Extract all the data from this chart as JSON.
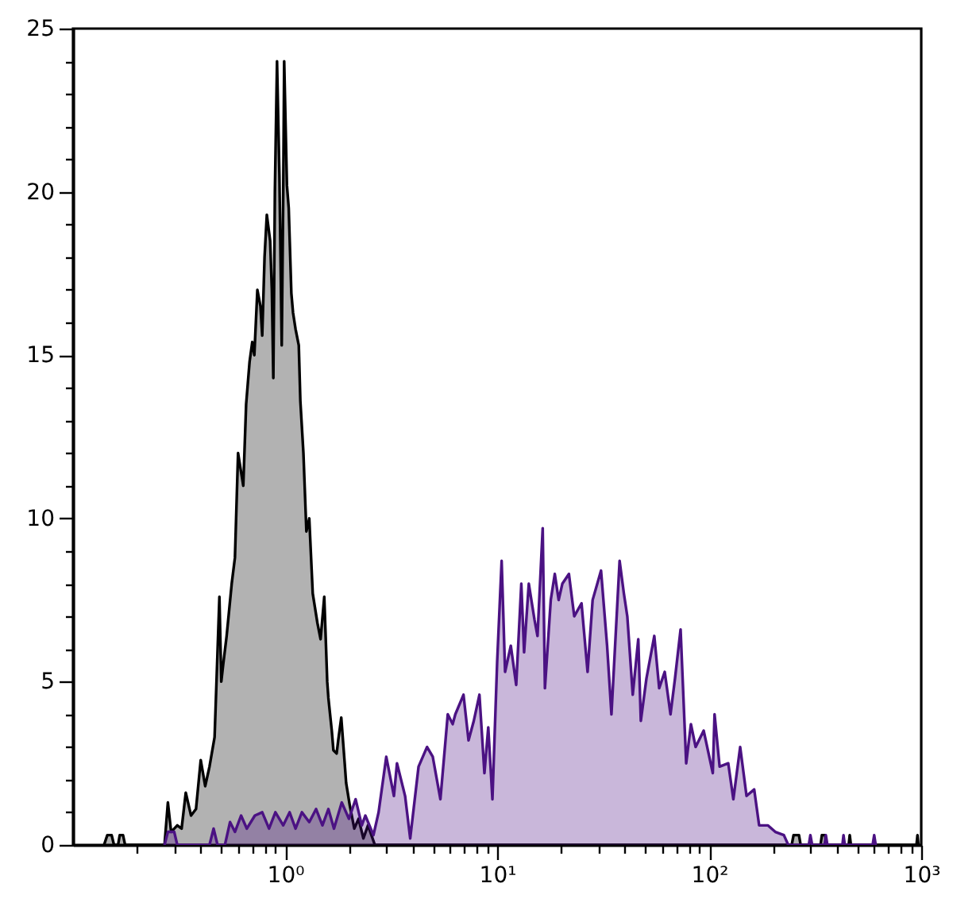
{
  "chart_data": {
    "type": "area",
    "log": "x",
    "xlim": [
      0.1,
      1000
    ],
    "ylim": [
      0,
      25
    ],
    "xticks": [
      {
        "value": 0.2,
        "label": null
      },
      {
        "value": 0.3,
        "label": null
      },
      {
        "value": 0.4,
        "label": null
      },
      {
        "value": 0.5,
        "label": null
      },
      {
        "value": 0.6,
        "label": null
      },
      {
        "value": 0.7,
        "label": null
      },
      {
        "value": 0.8,
        "label": null
      },
      {
        "value": 0.9,
        "label": null
      },
      {
        "value": 1,
        "label": "10⁰"
      },
      {
        "value": 2,
        "label": null
      },
      {
        "value": 3,
        "label": null
      },
      {
        "value": 4,
        "label": null
      },
      {
        "value": 5,
        "label": null
      },
      {
        "value": 6,
        "label": null
      },
      {
        "value": 7,
        "label": null
      },
      {
        "value": 8,
        "label": null
      },
      {
        "value": 9,
        "label": null
      },
      {
        "value": 10,
        "label": "10¹"
      },
      {
        "value": 20,
        "label": null
      },
      {
        "value": 30,
        "label": null
      },
      {
        "value": 40,
        "label": null
      },
      {
        "value": 50,
        "label": null
      },
      {
        "value": 60,
        "label": null
      },
      {
        "value": 70,
        "label": null
      },
      {
        "value": 80,
        "label": null
      },
      {
        "value": 90,
        "label": null
      },
      {
        "value": 100,
        "label": "10²"
      },
      {
        "value": 200,
        "label": null
      },
      {
        "value": 300,
        "label": null
      },
      {
        "value": 400,
        "label": null
      },
      {
        "value": 500,
        "label": null
      },
      {
        "value": 600,
        "label": null
      },
      {
        "value": 700,
        "label": null
      },
      {
        "value": 800,
        "label": null
      },
      {
        "value": 900,
        "label": null
      },
      {
        "value": 1000,
        "label": "10³"
      }
    ],
    "yticks": [
      0,
      {
        "value": 1,
        "label": null
      },
      {
        "value": 2,
        "label": null
      },
      {
        "value": 3,
        "label": null
      },
      {
        "value": 4,
        "label": null
      },
      5,
      {
        "value": 6,
        "label": null
      },
      {
        "value": 7,
        "label": null
      },
      {
        "value": 8,
        "label": null
      },
      {
        "value": 9,
        "label": null
      },
      10,
      {
        "value": 11,
        "label": null
      },
      {
        "value": 12,
        "label": null
      },
      {
        "value": 13,
        "label": null
      },
      {
        "value": 14,
        "label": null
      },
      15,
      {
        "value": 16,
        "label": null
      },
      {
        "value": 17,
        "label": null
      },
      {
        "value": 18,
        "label": null
      },
      {
        "value": 19,
        "label": null
      },
      20,
      {
        "value": 21,
        "label": null
      },
      {
        "value": 22,
        "label": null
      },
      {
        "value": 23,
        "label": null
      },
      {
        "value": 24,
        "label": null
      },
      25
    ],
    "series": [
      {
        "color": "#000000",
        "x": [
          0.14,
          0.145,
          0.152,
          0.156,
          0.163,
          0.166,
          0.172,
          0.176,
          0.27,
          0.28,
          0.29,
          0.31,
          0.325,
          0.34,
          0.36,
          0.38,
          0.4,
          0.42,
          0.44,
          0.465,
          0.49,
          0.5,
          0.51,
          0.53,
          0.56,
          0.58,
          0.6,
          0.635,
          0.655,
          0.68,
          0.7,
          0.716,
          0.74,
          0.765,
          0.78,
          0.8,
          0.82,
          0.85,
          0.866,
          0.88,
          0.895,
          0.916,
          0.94,
          0.964,
          0.98,
          0.99,
          1.02,
          1.04,
          1.07,
          1.09,
          1.12,
          1.16,
          1.18,
          1.22,
          1.26,
          1.3,
          1.35,
          1.42,
          1.47,
          1.53,
          1.58,
          1.6,
          1.66,
          1.69,
          1.75,
          1.78,
          1.84,
          1.91,
          1.94,
          2.02,
          2.12,
          2.22,
          2.34,
          2.46,
          2.65,
          245,
          250,
          265,
          270,
          335,
          340,
          352,
          357,
          455,
          460,
          466,
          950,
          960,
          970
        ],
        "values": [
          0,
          0.3,
          0.3,
          0,
          0,
          0.3,
          0.3,
          0,
          0,
          1.3,
          0.4,
          0.6,
          0.5,
          1.6,
          0.9,
          1.1,
          2.6,
          1.8,
          2.4,
          3.3,
          7.6,
          5.0,
          5.5,
          6.4,
          8.0,
          8.8,
          12.0,
          11.0,
          13.5,
          14.8,
          15.4,
          15.0,
          17.0,
          16.5,
          15.6,
          18.0,
          19.3,
          18.5,
          17.0,
          14.3,
          20.0,
          24.0,
          20.5,
          15.3,
          20.0,
          24.0,
          20.2,
          19.5,
          16.9,
          16.3,
          15.8,
          15.3,
          13.6,
          12.0,
          9.6,
          10.0,
          7.7,
          6.8,
          6.3,
          7.6,
          5.0,
          4.5,
          3.5,
          2.9,
          2.8,
          3.2,
          3.9,
          2.5,
          1.9,
          1.2,
          0.5,
          0.8,
          0.2,
          0.6,
          0,
          0,
          0.3,
          0.3,
          0,
          0,
          0.3,
          0.3,
          0,
          0,
          0.3,
          0,
          0,
          0.3,
          0
        ]
      },
      {
        "color": "#4b1283",
        "x": [
          0.27,
          0.28,
          0.3,
          0.31,
          0.44,
          0.46,
          0.48,
          0.52,
          0.55,
          0.58,
          0.62,
          0.66,
          0.72,
          0.78,
          0.84,
          0.9,
          0.98,
          1.05,
          1.12,
          1.2,
          1.3,
          1.4,
          1.5,
          1.6,
          1.7,
          1.85,
          2.0,
          2.15,
          2.3,
          2.39,
          2.61,
          2.76,
          3.0,
          3.26,
          3.37,
          3.68,
          3.89,
          4.26,
          4.67,
          4.97,
          5.4,
          5.85,
          6.17,
          6.35,
          6.94,
          7.33,
          7.76,
          8.25,
          8.71,
          9.08,
          9.5,
          10.0,
          10.5,
          10.9,
          11.6,
          12.3,
          13.0,
          13.4,
          14.1,
          15.0,
          15.5,
          16.4,
          16.8,
          17.9,
          18.7,
          19.5,
          20.3,
          21.8,
          23.1,
          25.0,
          26.7,
          28.2,
          30.9,
          33.0,
          34.6,
          37.8,
          39.6,
          41.1,
          43.6,
          46.3,
          47.6,
          50.6,
          55.1,
          58.1,
          61.7,
          65.7,
          69.0,
          73.3,
          77.9,
          82.0,
          86.3,
          94.2,
          104,
          106,
          112,
          123,
          130,
          140,
          150,
          163,
          172,
          189,
          205,
          225,
          236,
          295,
          300,
          306,
          350,
          355,
          361,
          425,
          430,
          436,
          590,
          600,
          610
        ],
        "values": [
          0,
          0.4,
          0.4,
          0,
          0,
          0.5,
          0,
          0,
          0.7,
          0.4,
          0.9,
          0.5,
          0.9,
          1.0,
          0.5,
          1.0,
          0.6,
          1.0,
          0.5,
          1.0,
          0.7,
          1.1,
          0.6,
          1.1,
          0.5,
          1.3,
          0.8,
          1.4,
          0.6,
          0.9,
          0.3,
          1.0,
          2.7,
          1.5,
          2.5,
          1.5,
          0.2,
          2.4,
          3.0,
          2.7,
          1.4,
          4.0,
          3.7,
          4.0,
          4.6,
          3.2,
          3.8,
          4.6,
          2.2,
          3.6,
          1.4,
          5.6,
          8.7,
          5.3,
          6.1,
          4.9,
          8.0,
          5.9,
          8.0,
          6.9,
          6.4,
          9.7,
          4.8,
          7.5,
          8.3,
          7.5,
          8.0,
          8.3,
          7.0,
          7.4,
          5.3,
          7.5,
          8.4,
          6.1,
          4.0,
          8.7,
          7.7,
          7.0,
          4.6,
          6.3,
          3.8,
          5.1,
          6.4,
          4.8,
          5.3,
          4.0,
          5.1,
          6.6,
          2.5,
          3.7,
          3.0,
          3.5,
          2.2,
          4.0,
          2.4,
          2.5,
          1.4,
          3.0,
          1.5,
          1.7,
          0.6,
          0.6,
          0.4,
          0.3,
          0,
          0,
          0.3,
          0,
          0,
          0.3,
          0,
          0,
          0.3,
          0,
          0,
          0.3,
          0
        ]
      }
    ]
  }
}
